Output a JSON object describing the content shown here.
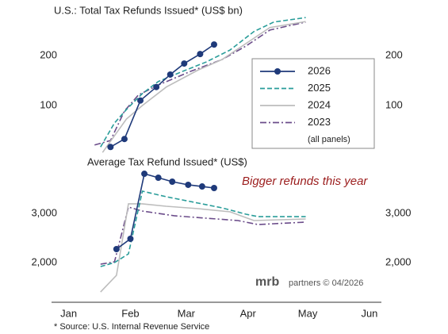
{
  "chart_data": [
    {
      "type": "line",
      "title": "U.S.: Total Tax Refunds Issued* (US$ bn)",
      "ylim": [
        0,
        280
      ],
      "yticks": [
        100,
        200
      ],
      "series": [
        {
          "name": "2026",
          "color": "#1f3a7a",
          "style": "solid",
          "marker": true,
          "x": [
            36,
            43,
            51,
            59,
            66,
            73,
            81,
            88
          ],
          "values": [
            17,
            33,
            110,
            137,
            162,
            184,
            203,
            222
          ]
        },
        {
          "name": "2025",
          "color": "#2a9d9a",
          "style": "dashed",
          "marker": false,
          "x": [
            31,
            38,
            44,
            52,
            60,
            72,
            84,
            96,
            108,
            118,
            134
          ],
          "values": [
            17,
            65,
            92,
            124,
            148,
            168,
            187,
            211,
            248,
            267,
            276
          ]
        },
        {
          "name": "2024",
          "color": "#bdbdbd",
          "style": "solid",
          "marker": false,
          "x": [
            32,
            44,
            52,
            64,
            80,
            92,
            104,
            116,
            134
          ],
          "values": [
            6,
            73,
            100,
            137,
            171,
            192,
            224,
            256,
            268
          ]
        },
        {
          "name": "2023",
          "color": "#6b4c8a",
          "style": "dashdot",
          "marker": false,
          "x": [
            28,
            36,
            43,
            50,
            60,
            76,
            92,
            104,
            116,
            134
          ],
          "values": [
            21,
            30,
            89,
            121,
            141,
            168,
            192,
            219,
            251,
            267
          ]
        }
      ],
      "legend_note": "(all panels)"
    },
    {
      "type": "line",
      "title": "Average Tax Refund Issued* (US$)",
      "annotation": "Bigger refunds this year",
      "xlim": [
        6,
        172
      ],
      "xticks": [
        {
          "value": 15,
          "label": "Jan"
        },
        {
          "value": 46,
          "label": "Feb"
        },
        {
          "value": 74,
          "label": "Mar"
        },
        {
          "value": 105,
          "label": "Apr"
        },
        {
          "value": 135,
          "label": "May"
        },
        {
          "value": 166,
          "label": "Jun"
        }
      ],
      "ylim": [
        1300,
        4000
      ],
      "yticks": [
        {
          "value": 2000,
          "label": "2,000"
        },
        {
          "value": 3000,
          "label": "3,000"
        }
      ],
      "series": [
        {
          "name": "2026",
          "color": "#1f3a7a",
          "style": "solid",
          "marker": true,
          "x": [
            39,
            46,
            53,
            60,
            67,
            75,
            82,
            88
          ],
          "values": [
            2274,
            2484,
            3806,
            3726,
            3645,
            3581,
            3548,
            3516
          ]
        },
        {
          "name": "2025",
          "color": "#2a9d9a",
          "style": "dashed",
          "marker": false,
          "x": [
            31,
            38,
            45,
            52,
            64,
            80,
            92,
            104,
            110,
            134
          ],
          "values": [
            1919,
            2000,
            2177,
            3452,
            3339,
            3210,
            3113,
            2984,
            2935,
            2935
          ]
        },
        {
          "name": "2024",
          "color": "#bdbdbd",
          "style": "solid",
          "marker": false,
          "x": [
            31,
            39,
            45,
            52,
            64,
            80,
            96,
            108,
            134
          ],
          "values": [
            1403,
            1742,
            3194,
            3194,
            3145,
            3097,
            3032,
            2855,
            2887
          ]
        },
        {
          "name": "2023",
          "color": "#6b4c8a",
          "style": "dashdot",
          "marker": false,
          "x": [
            31,
            38,
            45,
            52,
            68,
            84,
            100,
            110,
            134
          ],
          "values": [
            1968,
            2016,
            3129,
            3048,
            2952,
            2903,
            2855,
            2774,
            2823
          ]
        }
      ]
    }
  ],
  "footer": {
    "logo": "mrb",
    "credit": "partners © 04/2026",
    "source": "* Source: U.S. Internal Revenue Service"
  }
}
